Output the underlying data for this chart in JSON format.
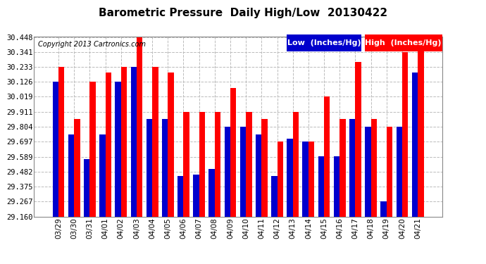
{
  "title": "Barometric Pressure  Daily High/Low  20130422",
  "copyright": "Copyright 2013 Cartronics.com",
  "legend_low": "Low  (Inches/Hg)",
  "legend_high": "High  (Inches/Hg)",
  "dates": [
    "03/29",
    "03/30",
    "03/31",
    "04/01",
    "04/02",
    "04/03",
    "04/04",
    "04/05",
    "04/06",
    "04/07",
    "04/08",
    "04/09",
    "04/10",
    "04/11",
    "04/12",
    "04/13",
    "04/14",
    "04/15",
    "04/16",
    "04/17",
    "04/18",
    "04/19",
    "04/20",
    "04/21"
  ],
  "low_values": [
    30.126,
    29.75,
    29.57,
    29.75,
    30.126,
    30.233,
    29.858,
    29.858,
    29.45,
    29.46,
    29.5,
    29.804,
    29.804,
    29.75,
    29.45,
    29.72,
    29.697,
    29.59,
    29.59,
    29.858,
    29.804,
    29.267,
    29.804,
    30.195
  ],
  "high_values": [
    30.233,
    29.858,
    30.126,
    30.195,
    30.233,
    30.448,
    30.233,
    30.195,
    29.911,
    29.911,
    29.911,
    30.08,
    29.911,
    29.858,
    29.697,
    29.911,
    29.697,
    30.019,
    29.858,
    30.268,
    29.858,
    29.804,
    30.341,
    30.448
  ],
  "ylim_min": 29.16,
  "ylim_max": 30.448,
  "yticks": [
    29.16,
    29.267,
    29.375,
    29.482,
    29.589,
    29.697,
    29.804,
    29.911,
    30.019,
    30.126,
    30.233,
    30.341,
    30.448
  ],
  "bar_width": 0.38,
  "low_color": "#0000cc",
  "high_color": "#ff0000",
  "bg_color": "#ffffff",
  "grid_color": "#bbbbbb",
  "title_fontsize": 11,
  "tick_fontsize": 7.5,
  "copyright_fontsize": 7,
  "legend_fontsize": 8
}
